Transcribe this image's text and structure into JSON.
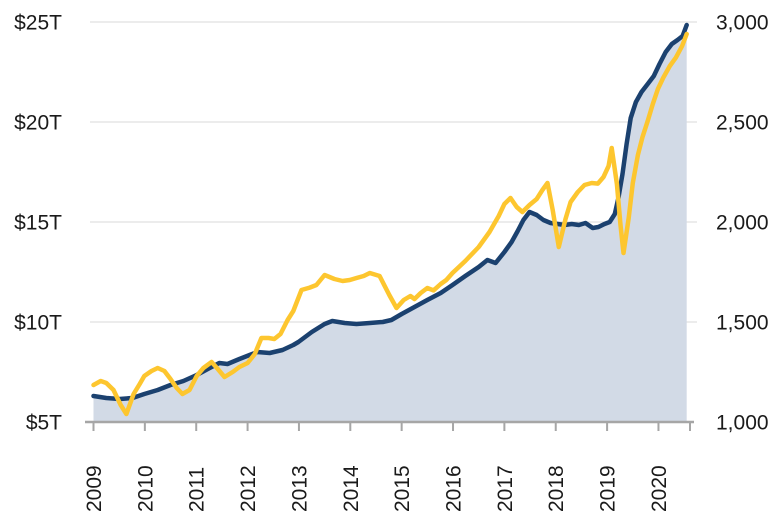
{
  "chart_data": {
    "type": "line",
    "title": "",
    "x_unit": "year-fraction",
    "grid": true,
    "legend": "none",
    "x_axis": {
      "labels": [
        "2009",
        "2010",
        "2011",
        "2012",
        "2013",
        "2014",
        "2015",
        "2016",
        "2017",
        "2018",
        "2019",
        "2020"
      ],
      "label_years": [
        2009,
        2010,
        2011,
        2012,
        2013,
        2014,
        2015,
        2016,
        2017,
        2018,
        2019,
        2020
      ],
      "range": [
        2009,
        2020.62
      ]
    },
    "left_axis": {
      "tick_labels": [
        "$25T",
        "$20T",
        "$15T",
        "$10T",
        "$5T"
      ],
      "tick_values": [
        25,
        20,
        15,
        10,
        5
      ],
      "range": [
        5,
        25
      ]
    },
    "right_axis": {
      "tick_labels": [
        "3,000",
        "2,500",
        "2,000",
        "1,500",
        "1,000"
      ],
      "tick_values": [
        3000,
        2500,
        2000,
        1500,
        1000
      ],
      "range": [
        1000,
        3000
      ]
    },
    "series": [
      {
        "name": "navy-area-series",
        "axis": "left",
        "style": "area-line",
        "color": "#1b416f",
        "fill": "#d2dae6",
        "points": [
          [
            2009.0,
            6.3
          ],
          [
            2009.25,
            6.2
          ],
          [
            2009.51,
            6.15
          ],
          [
            2009.76,
            6.2
          ],
          [
            2009.99,
            6.4
          ],
          [
            2010.25,
            6.6
          ],
          [
            2010.5,
            6.85
          ],
          [
            2010.75,
            7.05
          ],
          [
            2011.01,
            7.35
          ],
          [
            2011.26,
            7.7
          ],
          [
            2011.45,
            7.95
          ],
          [
            2011.61,
            7.9
          ],
          [
            2011.84,
            8.15
          ],
          [
            2012.04,
            8.35
          ],
          [
            2012.19,
            8.5
          ],
          [
            2012.43,
            8.45
          ],
          [
            2012.68,
            8.6
          ],
          [
            2012.89,
            8.85
          ],
          [
            2012.99,
            9.0
          ],
          [
            2013.25,
            9.5
          ],
          [
            2013.5,
            9.9
          ],
          [
            2013.65,
            10.05
          ],
          [
            2013.89,
            9.95
          ],
          [
            2014.12,
            9.9
          ],
          [
            2014.38,
            9.95
          ],
          [
            2014.63,
            10.0
          ],
          [
            2014.8,
            10.1
          ],
          [
            2015.0,
            10.4
          ],
          [
            2015.25,
            10.75
          ],
          [
            2015.5,
            11.1
          ],
          [
            2015.76,
            11.45
          ],
          [
            2015.99,
            11.85
          ],
          [
            2016.24,
            12.3
          ],
          [
            2016.5,
            12.75
          ],
          [
            2016.67,
            13.1
          ],
          [
            2016.83,
            12.95
          ],
          [
            2017.0,
            13.5
          ],
          [
            2017.14,
            14.0
          ],
          [
            2017.26,
            14.55
          ],
          [
            2017.37,
            15.1
          ],
          [
            2017.49,
            15.5
          ],
          [
            2017.63,
            15.35
          ],
          [
            2017.76,
            15.1
          ],
          [
            2017.9,
            14.95
          ],
          [
            2018.04,
            14.9
          ],
          [
            2018.17,
            14.85
          ],
          [
            2018.31,
            14.9
          ],
          [
            2018.45,
            14.85
          ],
          [
            2018.58,
            14.95
          ],
          [
            2018.72,
            14.7
          ],
          [
            2018.83,
            14.75
          ],
          [
            2018.95,
            14.9
          ],
          [
            2019.05,
            15.0
          ],
          [
            2019.15,
            15.4
          ],
          [
            2019.22,
            16.2
          ],
          [
            2019.3,
            17.4
          ],
          [
            2019.38,
            18.9
          ],
          [
            2019.46,
            20.2
          ],
          [
            2019.56,
            21.0
          ],
          [
            2019.67,
            21.5
          ],
          [
            2019.79,
            21.9
          ],
          [
            2019.91,
            22.3
          ],
          [
            2020.02,
            22.9
          ],
          [
            2020.14,
            23.5
          ],
          [
            2020.26,
            23.9
          ],
          [
            2020.37,
            24.1
          ],
          [
            2020.47,
            24.3
          ],
          [
            2020.55,
            24.85
          ]
        ]
      },
      {
        "name": "gold-line-series",
        "axis": "right",
        "style": "line",
        "color": "#fdc62f",
        "points": [
          [
            2009.0,
            1185
          ],
          [
            2009.14,
            1205
          ],
          [
            2009.25,
            1195
          ],
          [
            2009.39,
            1160
          ],
          [
            2009.53,
            1085
          ],
          [
            2009.64,
            1040
          ],
          [
            2009.78,
            1140
          ],
          [
            2009.9,
            1190
          ],
          [
            2009.99,
            1230
          ],
          [
            2010.13,
            1255
          ],
          [
            2010.25,
            1270
          ],
          [
            2010.38,
            1255
          ],
          [
            2010.5,
            1215
          ],
          [
            2010.62,
            1170
          ],
          [
            2010.73,
            1140
          ],
          [
            2010.87,
            1160
          ],
          [
            2011.01,
            1230
          ],
          [
            2011.14,
            1270
          ],
          [
            2011.3,
            1300
          ],
          [
            2011.42,
            1265
          ],
          [
            2011.55,
            1225
          ],
          [
            2011.71,
            1250
          ],
          [
            2011.84,
            1275
          ],
          [
            2012.0,
            1295
          ],
          [
            2012.14,
            1340
          ],
          [
            2012.27,
            1420
          ],
          [
            2012.41,
            1420
          ],
          [
            2012.52,
            1415
          ],
          [
            2012.64,
            1440
          ],
          [
            2012.78,
            1510
          ],
          [
            2012.89,
            1555
          ],
          [
            2013.05,
            1660
          ],
          [
            2013.21,
            1672
          ],
          [
            2013.34,
            1685
          ],
          [
            2013.5,
            1735
          ],
          [
            2013.69,
            1715
          ],
          [
            2013.85,
            1705
          ],
          [
            2013.99,
            1710
          ],
          [
            2014.12,
            1720
          ],
          [
            2014.26,
            1730
          ],
          [
            2014.38,
            1745
          ],
          [
            2014.57,
            1730
          ],
          [
            2014.76,
            1635
          ],
          [
            2014.9,
            1570
          ],
          [
            2015.04,
            1610
          ],
          [
            2015.17,
            1630
          ],
          [
            2015.25,
            1615
          ],
          [
            2015.37,
            1645
          ],
          [
            2015.5,
            1670
          ],
          [
            2015.62,
            1658
          ],
          [
            2015.76,
            1690
          ],
          [
            2015.87,
            1710
          ],
          [
            2015.99,
            1745
          ],
          [
            2016.24,
            1805
          ],
          [
            2016.5,
            1875
          ],
          [
            2016.71,
            1950
          ],
          [
            2016.89,
            2030
          ],
          [
            2017.0,
            2090
          ],
          [
            2017.12,
            2120
          ],
          [
            2017.24,
            2075
          ],
          [
            2017.35,
            2050
          ],
          [
            2017.49,
            2085
          ],
          [
            2017.63,
            2115
          ],
          [
            2017.74,
            2160
          ],
          [
            2017.84,
            2195
          ],
          [
            2017.94,
            2060
          ],
          [
            2018.06,
            1875
          ],
          [
            2018.19,
            2015
          ],
          [
            2018.29,
            2100
          ],
          [
            2018.43,
            2150
          ],
          [
            2018.56,
            2185
          ],
          [
            2018.7,
            2195
          ],
          [
            2018.82,
            2192
          ],
          [
            2018.93,
            2225
          ],
          [
            2019.03,
            2280
          ],
          [
            2019.09,
            2370
          ],
          [
            2019.19,
            2190
          ],
          [
            2019.26,
            1985
          ],
          [
            2019.32,
            1845
          ],
          [
            2019.42,
            2020
          ],
          [
            2019.5,
            2195
          ],
          [
            2019.6,
            2335
          ],
          [
            2019.69,
            2425
          ],
          [
            2019.79,
            2505
          ],
          [
            2019.89,
            2590
          ],
          [
            2019.99,
            2665
          ],
          [
            2020.09,
            2720
          ],
          [
            2020.22,
            2780
          ],
          [
            2020.34,
            2822
          ],
          [
            2020.46,
            2880
          ],
          [
            2020.55,
            2940
          ]
        ]
      }
    ],
    "colors": {
      "gridline": "#d9d9d9",
      "axis_line": "#a6a6a6",
      "tick_mark": "#a6a6a6",
      "label_text": "#1a1a1a",
      "background": "#ffffff"
    }
  }
}
